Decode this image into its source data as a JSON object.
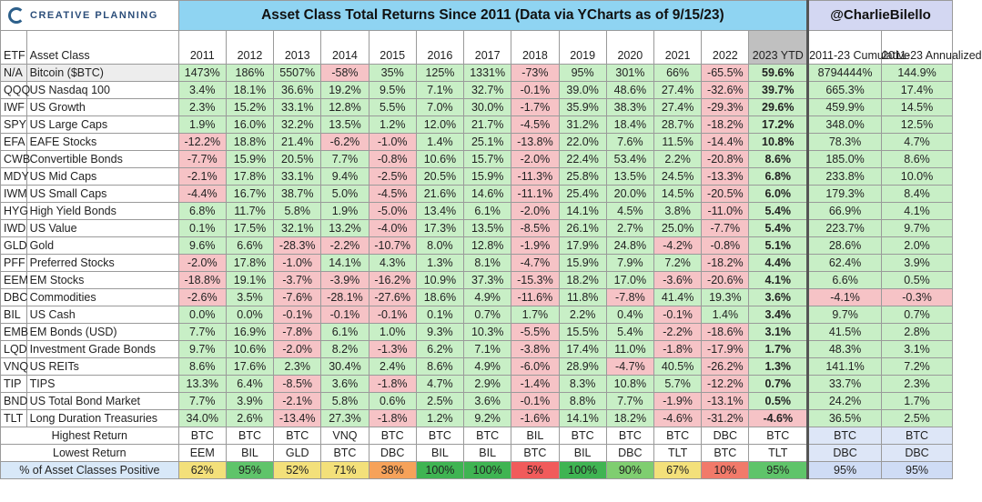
{
  "header": {
    "logo_text": "CREATIVE PLANNING",
    "title": "Asset Class Total Returns Since 2011 (Data via YCharts as of 9/15/23)",
    "handle": "@CharlieBilello"
  },
  "columns": {
    "etf": "ETF",
    "asset_class": "Asset Class",
    "years": [
      "2011",
      "2012",
      "2013",
      "2014",
      "2015",
      "2016",
      "2017",
      "2018",
      "2019",
      "2020",
      "2021",
      "2022",
      "2023 YTD"
    ],
    "cumulative": "2011-23 Cumulative",
    "annualized": "2011-23 Annualized"
  },
  "rows": [
    {
      "etf": "N/A",
      "name": "Bitcoin ($BTC)",
      "vals": [
        "1473%",
        "186%",
        "5507%",
        "-58%",
        "35%",
        "125%",
        "1331%",
        "-73%",
        "95%",
        "301%",
        "66%",
        "-65.5%",
        "59.6%"
      ],
      "cum": "8794444%",
      "ann": "144.9%"
    },
    {
      "etf": "QQQ",
      "name": "US Nasdaq 100",
      "vals": [
        "3.4%",
        "18.1%",
        "36.6%",
        "19.2%",
        "9.5%",
        "7.1%",
        "32.7%",
        "-0.1%",
        "39.0%",
        "48.6%",
        "27.4%",
        "-32.6%",
        "39.7%"
      ],
      "cum": "665.3%",
      "ann": "17.4%"
    },
    {
      "etf": "IWF",
      "name": "US Growth",
      "vals": [
        "2.3%",
        "15.2%",
        "33.1%",
        "12.8%",
        "5.5%",
        "7.0%",
        "30.0%",
        "-1.7%",
        "35.9%",
        "38.3%",
        "27.4%",
        "-29.3%",
        "29.6%"
      ],
      "cum": "459.9%",
      "ann": "14.5%"
    },
    {
      "etf": "SPY",
      "name": "US Large Caps",
      "vals": [
        "1.9%",
        "16.0%",
        "32.2%",
        "13.5%",
        "1.2%",
        "12.0%",
        "21.7%",
        "-4.5%",
        "31.2%",
        "18.4%",
        "28.7%",
        "-18.2%",
        "17.2%"
      ],
      "cum": "348.0%",
      "ann": "12.5%"
    },
    {
      "etf": "EFA",
      "name": "EAFE Stocks",
      "vals": [
        "-12.2%",
        "18.8%",
        "21.4%",
        "-6.2%",
        "-1.0%",
        "1.4%",
        "25.1%",
        "-13.8%",
        "22.0%",
        "7.6%",
        "11.5%",
        "-14.4%",
        "10.8%"
      ],
      "cum": "78.3%",
      "ann": "4.7%"
    },
    {
      "etf": "CWB",
      "name": "Convertible Bonds",
      "vals": [
        "-7.7%",
        "15.9%",
        "20.5%",
        "7.7%",
        "-0.8%",
        "10.6%",
        "15.7%",
        "-2.0%",
        "22.4%",
        "53.4%",
        "2.2%",
        "-20.8%",
        "8.6%"
      ],
      "cum": "185.0%",
      "ann": "8.6%"
    },
    {
      "etf": "MDY",
      "name": "US Mid Caps",
      "vals": [
        "-2.1%",
        "17.8%",
        "33.1%",
        "9.4%",
        "-2.5%",
        "20.5%",
        "15.9%",
        "-11.3%",
        "25.8%",
        "13.5%",
        "24.5%",
        "-13.3%",
        "6.8%"
      ],
      "cum": "233.8%",
      "ann": "10.0%"
    },
    {
      "etf": "IWM",
      "name": "US Small Caps",
      "vals": [
        "-4.4%",
        "16.7%",
        "38.7%",
        "5.0%",
        "-4.5%",
        "21.6%",
        "14.6%",
        "-11.1%",
        "25.4%",
        "20.0%",
        "14.5%",
        "-20.5%",
        "6.0%"
      ],
      "cum": "179.3%",
      "ann": "8.4%"
    },
    {
      "etf": "HYG",
      "name": "High Yield Bonds",
      "vals": [
        "6.8%",
        "11.7%",
        "5.8%",
        "1.9%",
        "-5.0%",
        "13.4%",
        "6.1%",
        "-2.0%",
        "14.1%",
        "4.5%",
        "3.8%",
        "-11.0%",
        "5.4%"
      ],
      "cum": "66.9%",
      "ann": "4.1%"
    },
    {
      "etf": "IWD",
      "name": "US Value",
      "vals": [
        "0.1%",
        "17.5%",
        "32.1%",
        "13.2%",
        "-4.0%",
        "17.3%",
        "13.5%",
        "-8.5%",
        "26.1%",
        "2.7%",
        "25.0%",
        "-7.7%",
        "5.4%"
      ],
      "cum": "223.7%",
      "ann": "9.7%"
    },
    {
      "etf": "GLD",
      "name": "Gold",
      "vals": [
        "9.6%",
        "6.6%",
        "-28.3%",
        "-2.2%",
        "-10.7%",
        "8.0%",
        "12.8%",
        "-1.9%",
        "17.9%",
        "24.8%",
        "-4.2%",
        "-0.8%",
        "5.1%"
      ],
      "cum": "28.6%",
      "ann": "2.0%"
    },
    {
      "etf": "PFF",
      "name": "Preferred Stocks",
      "vals": [
        "-2.0%",
        "17.8%",
        "-1.0%",
        "14.1%",
        "4.3%",
        "1.3%",
        "8.1%",
        "-4.7%",
        "15.9%",
        "7.9%",
        "7.2%",
        "-18.2%",
        "4.4%"
      ],
      "cum": "62.4%",
      "ann": "3.9%"
    },
    {
      "etf": "EEM",
      "name": "EM Stocks",
      "vals": [
        "-18.8%",
        "19.1%",
        "-3.7%",
        "-3.9%",
        "-16.2%",
        "10.9%",
        "37.3%",
        "-15.3%",
        "18.2%",
        "17.0%",
        "-3.6%",
        "-20.6%",
        "4.1%"
      ],
      "cum": "6.6%",
      "ann": "0.5%"
    },
    {
      "etf": "DBC",
      "name": "Commodities",
      "vals": [
        "-2.6%",
        "3.5%",
        "-7.6%",
        "-28.1%",
        "-27.6%",
        "18.6%",
        "4.9%",
        "-11.6%",
        "11.8%",
        "-7.8%",
        "41.4%",
        "19.3%",
        "3.6%"
      ],
      "cum": "-4.1%",
      "ann": "-0.3%"
    },
    {
      "etf": "BIL",
      "name": "US Cash",
      "vals": [
        "0.0%",
        "0.0%",
        "-0.1%",
        "-0.1%",
        "-0.1%",
        "0.1%",
        "0.7%",
        "1.7%",
        "2.2%",
        "0.4%",
        "-0.1%",
        "1.4%",
        "3.4%"
      ],
      "cum": "9.7%",
      "ann": "0.7%"
    },
    {
      "etf": "EMB",
      "name": "EM Bonds (USD)",
      "vals": [
        "7.7%",
        "16.9%",
        "-7.8%",
        "6.1%",
        "1.0%",
        "9.3%",
        "10.3%",
        "-5.5%",
        "15.5%",
        "5.4%",
        "-2.2%",
        "-18.6%",
        "3.1%"
      ],
      "cum": "41.5%",
      "ann": "2.8%"
    },
    {
      "etf": "LQD",
      "name": "Investment Grade Bonds",
      "vals": [
        "9.7%",
        "10.6%",
        "-2.0%",
        "8.2%",
        "-1.3%",
        "6.2%",
        "7.1%",
        "-3.8%",
        "17.4%",
        "11.0%",
        "-1.8%",
        "-17.9%",
        "1.7%"
      ],
      "cum": "48.3%",
      "ann": "3.1%"
    },
    {
      "etf": "VNQ",
      "name": "US REITs",
      "vals": [
        "8.6%",
        "17.6%",
        "2.3%",
        "30.4%",
        "2.4%",
        "8.6%",
        "4.9%",
        "-6.0%",
        "28.9%",
        "-4.7%",
        "40.5%",
        "-26.2%",
        "1.3%"
      ],
      "cum": "141.1%",
      "ann": "7.2%"
    },
    {
      "etf": "TIP",
      "name": "TIPS",
      "vals": [
        "13.3%",
        "6.4%",
        "-8.5%",
        "3.6%",
        "-1.8%",
        "4.7%",
        "2.9%",
        "-1.4%",
        "8.3%",
        "10.8%",
        "5.7%",
        "-12.2%",
        "0.7%"
      ],
      "cum": "33.7%",
      "ann": "2.3%"
    },
    {
      "etf": "BND",
      "name": "US Total Bond Market",
      "vals": [
        "7.7%",
        "3.9%",
        "-2.1%",
        "5.8%",
        "0.6%",
        "2.5%",
        "3.6%",
        "-0.1%",
        "8.8%",
        "7.7%",
        "-1.9%",
        "-13.1%",
        "0.5%"
      ],
      "cum": "24.2%",
      "ann": "1.7%"
    },
    {
      "etf": "TLT",
      "name": "Long Duration Treasuries",
      "vals": [
        "34.0%",
        "2.6%",
        "-13.4%",
        "27.3%",
        "-1.8%",
        "1.2%",
        "9.2%",
        "-1.6%",
        "14.1%",
        "18.2%",
        "-4.6%",
        "-31.2%",
        "-4.6%"
      ],
      "cum": "36.5%",
      "ann": "2.5%"
    }
  ],
  "summary": {
    "highest": {
      "label": "Highest Return",
      "vals": [
        "BTC",
        "BTC",
        "BTC",
        "VNQ",
        "BTC",
        "BTC",
        "BTC",
        "BIL",
        "BTC",
        "BTC",
        "BTC",
        "DBC",
        "BTC"
      ],
      "cum": "BTC",
      "ann": "BTC"
    },
    "lowest": {
      "label": "Lowest Return",
      "vals": [
        "EEM",
        "BIL",
        "GLD",
        "BTC",
        "DBC",
        "BIL",
        "BIL",
        "BTC",
        "BIL",
        "DBC",
        "TLT",
        "BTC",
        "TLT"
      ],
      "cum": "DBC",
      "ann": "DBC"
    },
    "positive": {
      "label": "% of Asset Classes Positive",
      "vals": [
        "62%",
        "95%",
        "52%",
        "71%",
        "38%",
        "100%",
        "100%",
        "5%",
        "100%",
        "90%",
        "67%",
        "10%",
        "95%"
      ],
      "cum": "95%",
      "ann": "95%"
    }
  },
  "colors": {
    "positive_bg": "#c8efc6",
    "negative_bg": "#f6c3c6",
    "title_bg": "#8fd4f2",
    "handle_bg": "#d3d7f2",
    "positive_pct_colors": [
      "#f3e07a",
      "#5fc46a",
      "#f3e07a",
      "#f3e07a",
      "#f6a25a",
      "#3fb452",
      "#3fb452",
      "#f15b5b",
      "#3fb452",
      "#7fce70",
      "#f3e07a",
      "#f17a6a",
      "#5fc46a"
    ]
  }
}
